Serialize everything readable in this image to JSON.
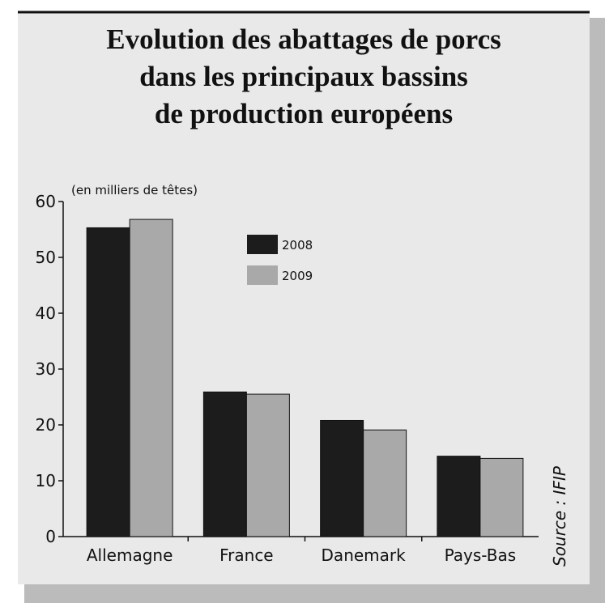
{
  "chart_data": {
    "type": "bar",
    "title": [
      "Evolution des abattages de porcs",
      "dans les principaux bassins",
      "de production européens"
    ],
    "y_label": "(en milliers de têtes)",
    "source": "Source : IFIP",
    "categories": [
      "Allemagne",
      "France",
      "Danemark",
      "Pays-Bas"
    ],
    "series": [
      {
        "name": "2008",
        "color": "#1c1c1c",
        "values": [
          55.3,
          25.9,
          20.8,
          14.4
        ]
      },
      {
        "name": "2009",
        "color": "#a9a9a9",
        "values": [
          56.8,
          25.5,
          19.1,
          14.0
        ]
      }
    ],
    "ylim": [
      0,
      60
    ],
    "yticks": [
      0,
      10,
      20,
      30,
      40,
      50,
      60
    ]
  }
}
